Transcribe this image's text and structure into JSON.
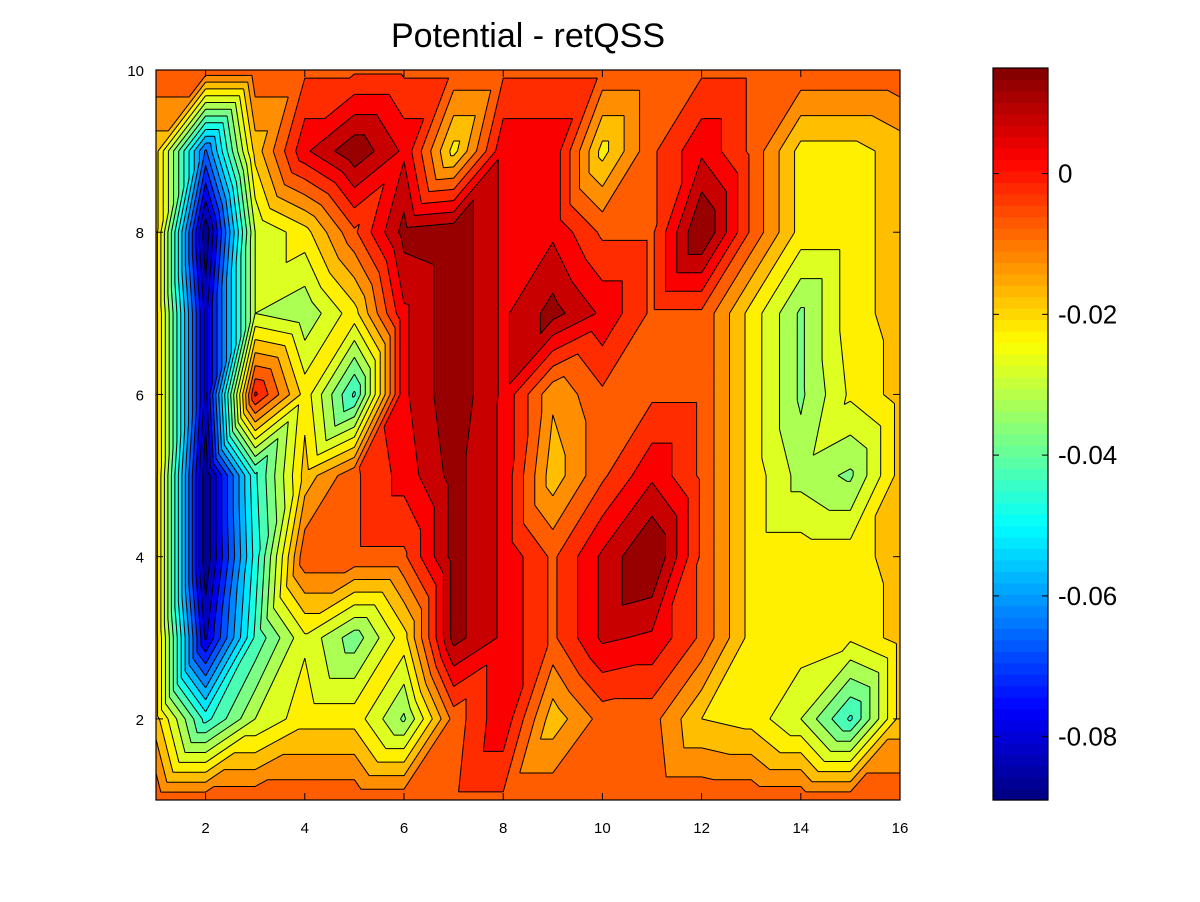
{
  "chart_data": {
    "type": "contour",
    "title": "Potential - retQSS",
    "xlabel": "",
    "ylabel": "",
    "xlim": [
      1,
      16
    ],
    "ylim": [
      1,
      10
    ],
    "x_ticks": [
      "2",
      "4",
      "6",
      "8",
      "10",
      "12",
      "14",
      "16"
    ],
    "y_ticks": [
      "2",
      "4",
      "6",
      "8",
      "10"
    ],
    "colormap": "jet",
    "colorbar": {
      "range": [
        -0.089,
        0.015
      ],
      "tick_values": [
        0,
        -0.02,
        -0.04,
        -0.06,
        -0.08
      ],
      "tick_labels": [
        "0",
        "-0.02",
        "-0.04",
        "-0.06",
        "-0.08"
      ],
      "placement": "right"
    },
    "x": [
      1,
      2,
      3,
      4,
      5,
      6,
      7,
      8,
      9,
      10,
      11,
      12,
      13,
      14,
      15,
      16
    ],
    "y": [
      1,
      2,
      3,
      4,
      5,
      6,
      7,
      8,
      9,
      10
    ],
    "z": [
      [
        -0.006,
        -0.006,
        -0.006,
        -0.006,
        -0.006,
        -0.006,
        -0.006,
        -0.006,
        -0.006,
        -0.006,
        -0.006,
        -0.006,
        -0.006,
        -0.006,
        -0.006,
        -0.006
      ],
      [
        -0.018,
        -0.047,
        -0.03,
        -0.022,
        -0.022,
        -0.036,
        -0.008,
        0.004,
        -0.018,
        -0.008,
        -0.008,
        -0.02,
        -0.022,
        -0.03,
        -0.046,
        -0.018
      ],
      [
        -0.018,
        -0.081,
        -0.044,
        -0.026,
        -0.038,
        -0.022,
        0.012,
        0.004,
        -0.006,
        0.006,
        0.004,
        -0.006,
        -0.022,
        -0.022,
        -0.024,
        -0.018
      ],
      [
        -0.018,
        -0.089,
        -0.048,
        -0.006,
        -0.006,
        -0.006,
        0.012,
        0.004,
        -0.006,
        0.006,
        0.016,
        -0.006,
        -0.022,
        -0.022,
        -0.022,
        -0.018
      ],
      [
        -0.018,
        -0.089,
        -0.046,
        -0.018,
        -0.006,
        0.002,
        0.012,
        0.004,
        -0.018,
        -0.006,
        0.004,
        -0.006,
        -0.022,
        -0.032,
        -0.036,
        -0.018
      ],
      [
        -0.018,
        -0.082,
        0.001,
        -0.022,
        -0.046,
        0.004,
        0.014,
        0.004,
        -0.014,
        -0.006,
        -0.006,
        -0.006,
        -0.022,
        -0.036,
        -0.024,
        -0.018
      ],
      [
        -0.018,
        -0.082,
        -0.03,
        -0.034,
        -0.022,
        0.004,
        0.014,
        0.004,
        0.012,
        0.004,
        -0.006,
        -0.006,
        -0.022,
        -0.036,
        -0.022,
        -0.018
      ],
      [
        -0.018,
        -0.089,
        -0.03,
        -0.022,
        -0.006,
        0.012,
        0.014,
        0.004,
        0.004,
        -0.006,
        -0.006,
        0.016,
        -0.006,
        -0.022,
        -0.022,
        -0.018
      ],
      [
        -0.018,
        -0.066,
        -0.018,
        0.004,
        0.014,
        0.004,
        -0.022,
        0.004,
        0.004,
        -0.022,
        -0.006,
        0.004,
        -0.006,
        -0.022,
        -0.022,
        -0.018
      ],
      [
        -0.006,
        -0.006,
        -0.006,
        -0.006,
        -0.006,
        -0.006,
        -0.006,
        -0.006,
        -0.006,
        -0.006,
        -0.006,
        -0.006,
        -0.006,
        -0.006,
        -0.006,
        -0.006
      ]
    ],
    "contour_levels": [
      -0.085,
      -0.08,
      -0.075,
      -0.07,
      -0.065,
      -0.06,
      -0.055,
      -0.05,
      -0.045,
      -0.04,
      -0.035,
      -0.03,
      -0.025,
      -0.02,
      -0.015,
      -0.01,
      -0.005,
      0.0,
      0.005,
      0.01
    ]
  }
}
